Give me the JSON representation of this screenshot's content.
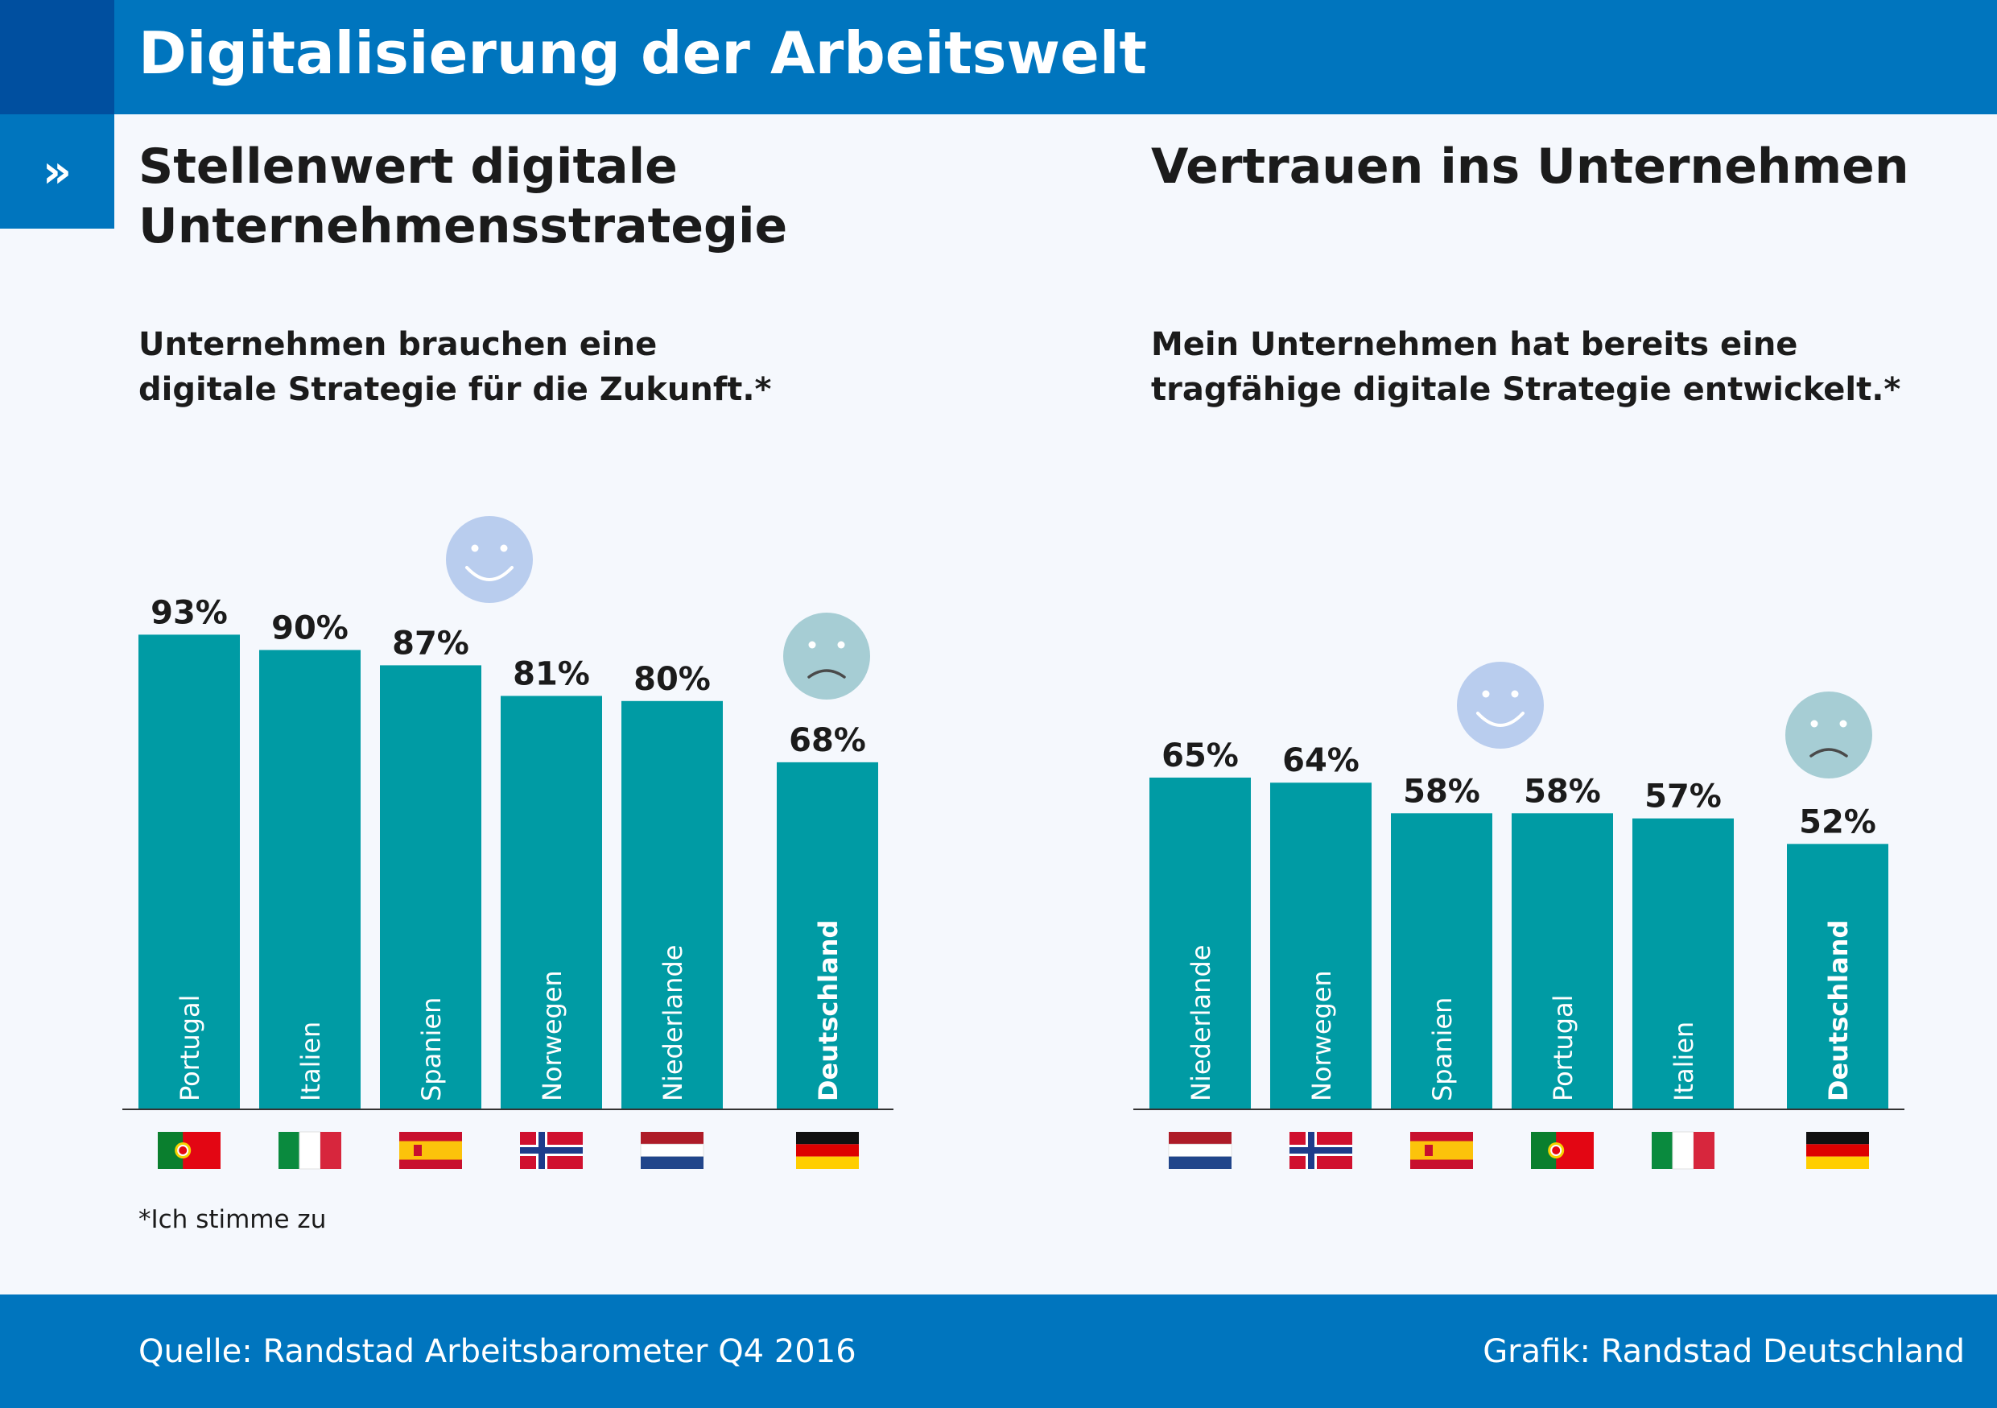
{
  "header": {
    "title": "Digitalisierung der Arbeitswelt",
    "chevron": "»"
  },
  "footer": {
    "source": "Quelle: Randstad Arbeitsbarometer Q4 2016",
    "credit": "Grafik: Randstad Deutschland"
  },
  "footnote": "*Ich stimme zu",
  "colors": {
    "bar": "#009ba4",
    "header": "#0075be",
    "header_dark": "#004f9f",
    "happy": "#b9cdee",
    "sad": "#a6cdd4"
  },
  "chart_data": [
    {
      "type": "bar",
      "title_line1": "Stellenwert digitale",
      "title_line2": "Unternehmensstrategie",
      "subtitle_line1": "Unternehmen brauchen eine",
      "subtitle_line2": "digitale Strategie für die Zukunft.*",
      "unit": "%",
      "categories": [
        "Portugal",
        "Italien",
        "Spanien",
        "Norwegen",
        "Niederlande",
        "Deutschland"
      ],
      "values": [
        93,
        90,
        87,
        81,
        80,
        68
      ],
      "labels": [
        "93%",
        "90%",
        "87%",
        "81%",
        "80%",
        "68%"
      ],
      "flags": [
        "portugal-flag-icon",
        "italy-flag-icon",
        "spain-flag-icon",
        "norway-flag-icon",
        "netherlands-flag-icon",
        "germany-flag-icon"
      ],
      "icons": [
        "happy-face-icon",
        "sad-face-icon"
      ],
      "ylim": [
        0,
        100
      ]
    },
    {
      "type": "bar",
      "title_line1": "Vertrauen ins Unternehmen",
      "subtitle_line1": "Mein Unternehmen hat bereits eine",
      "subtitle_line2": "tragfähige digitale Strategie entwickelt.*",
      "unit": "%",
      "categories": [
        "Niederlande",
        "Norwegen",
        "Spanien",
        "Portugal",
        "Italien",
        "Deutschland"
      ],
      "values": [
        65,
        64,
        58,
        58,
        57,
        52
      ],
      "labels": [
        "65%",
        "64%",
        "58%",
        "58%",
        "57%",
        "52%"
      ],
      "flags": [
        "netherlands-flag-icon",
        "norway-flag-icon",
        "spain-flag-icon",
        "portugal-flag-icon",
        "italy-flag-icon",
        "germany-flag-icon"
      ],
      "icons": [
        "happy-face-icon",
        "sad-face-icon"
      ],
      "ylim": [
        0,
        100
      ]
    }
  ]
}
